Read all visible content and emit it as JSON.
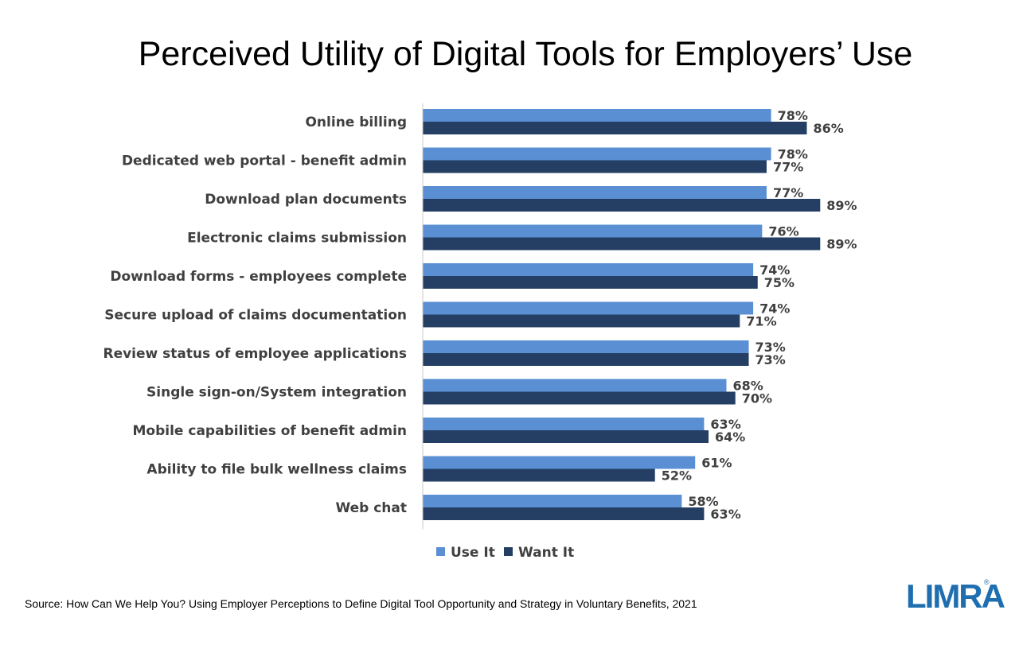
{
  "chart_data": {
    "type": "bar",
    "orientation": "horizontal",
    "title": "Perceived Utility of Digital Tools for Employers’ Use",
    "categories": [
      "Online billing",
      "Dedicated web portal - benefit admin",
      "Download plan documents",
      "Electronic claims submission",
      "Download forms - employees complete",
      "Secure upload of claims documentation",
      "Review status of employee applications",
      "Single sign-on/System integration",
      "Mobile capabilities of benefit admin",
      "Ability to file bulk wellness claims",
      "Web chat"
    ],
    "series": [
      {
        "name": "Use It",
        "color": "#5a8fd4",
        "values": [
          78,
          78,
          77,
          76,
          74,
          74,
          73,
          68,
          63,
          61,
          58
        ]
      },
      {
        "name": "Want It",
        "color": "#243f63",
        "values": [
          86,
          77,
          89,
          89,
          75,
          71,
          73,
          70,
          64,
          52,
          63
        ]
      }
    ],
    "value_suffix": "%",
    "xlim": [
      0,
      100
    ],
    "grid": false,
    "legend_position": "bottom"
  },
  "footer": {
    "source": "Source: How Can We Help You? Using Employer Perceptions to Define Digital Tool Opportunity and Strategy in Voluntary Benefits, 2021"
  },
  "logo": {
    "text": "LIMRA",
    "mark": "®",
    "color": "#1f6fb0"
  }
}
